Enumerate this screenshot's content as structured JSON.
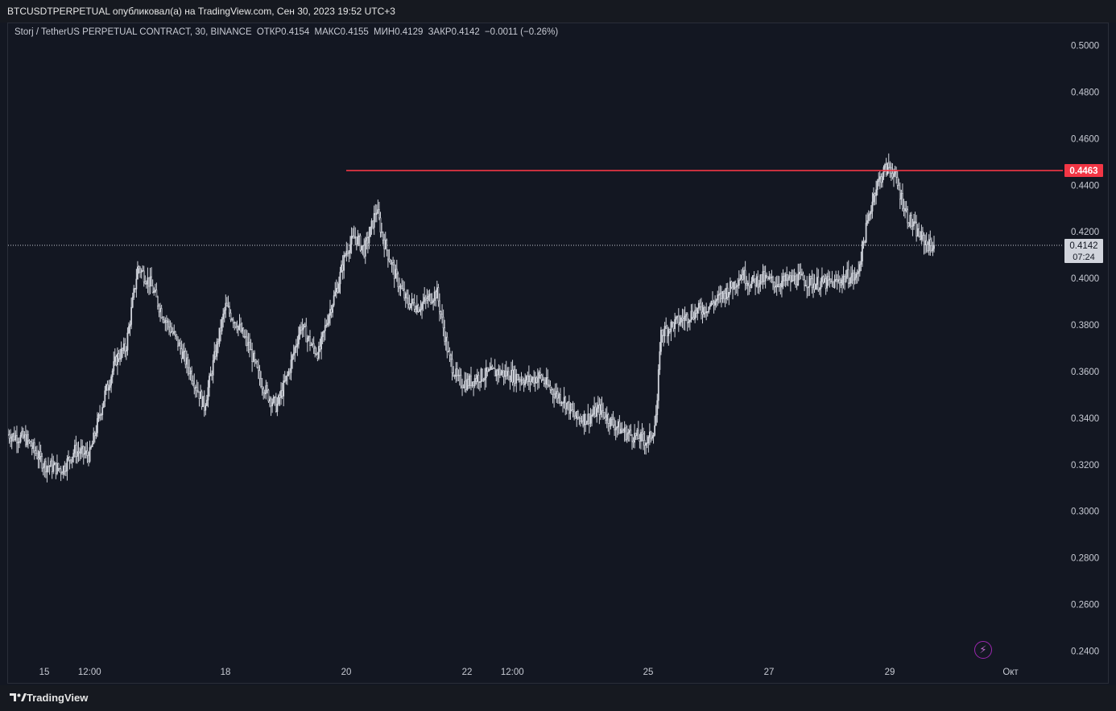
{
  "header": {
    "publisher": "BTCUSDTPERPETUAL опубликовал(а) на TradingView.com, Сен 30, 2023 19:52 UTC+3"
  },
  "legend": {
    "symbol": "Storj / TetherUS PERPETUAL CONTRACT, 30, BINANCE",
    "open": "ОТКР0.4154",
    "high": "МАКС0.4155",
    "low": "МИН0.4129",
    "close": "ЗАКР0.4142",
    "change": "−0.0011 (−0.26%)"
  },
  "footer": {
    "brand": "TradingView"
  },
  "icons": {
    "alert": "lightning-icon",
    "logo": "tradingview-logo-icon"
  },
  "colors": {
    "background": "#131722",
    "candle": "#d1d4dc",
    "level": "#f23645",
    "current_price_tag": "#d1d4dc"
  },
  "chart_data": {
    "type": "candlestick",
    "interval": "30",
    "ylim": [
      0.235,
      0.505
    ],
    "y_ticks": [
      "0.5000",
      "0.4800",
      "0.4600",
      "0.4400",
      "0.4200",
      "0.4000",
      "0.3800",
      "0.3600",
      "0.3400",
      "0.3200",
      "0.3000",
      "0.2800",
      "0.2600",
      "0.2400"
    ],
    "x_ticks": [
      "15",
      "12:00",
      "18",
      "20",
      "22",
      "12:00",
      "25",
      "27",
      "29",
      "Окт"
    ],
    "x_tick_positions_days": [
      14.0,
      14.75,
      17.0,
      19.0,
      21.0,
      21.75,
      24.0,
      26.0,
      28.0,
      30.0
    ],
    "x_range_days": [
      13.4,
      31.0
    ],
    "horizontal_line": {
      "value": 0.4463,
      "label": "0.4463",
      "from_day": 19.0
    },
    "current_price": {
      "value": 0.4142,
      "label": "0.4142",
      "countdown": "07:24"
    },
    "price_path": [
      [
        13.4,
        0.333
      ],
      [
        13.7,
        0.331
      ],
      [
        14.0,
        0.32
      ],
      [
        14.3,
        0.318
      ],
      [
        14.5,
        0.326
      ],
      [
        14.75,
        0.324
      ],
      [
        15.0,
        0.35
      ],
      [
        15.2,
        0.366
      ],
      [
        15.35,
        0.37
      ],
      [
        15.55,
        0.405
      ],
      [
        15.75,
        0.398
      ],
      [
        15.95,
        0.385
      ],
      [
        16.2,
        0.373
      ],
      [
        16.5,
        0.355
      ],
      [
        16.65,
        0.345
      ],
      [
        16.85,
        0.37
      ],
      [
        17.0,
        0.388
      ],
      [
        17.2,
        0.38
      ],
      [
        17.4,
        0.37
      ],
      [
        17.55,
        0.358
      ],
      [
        17.7,
        0.35
      ],
      [
        17.85,
        0.345
      ],
      [
        18.05,
        0.36
      ],
      [
        18.25,
        0.38
      ],
      [
        18.45,
        0.37
      ],
      [
        18.55,
        0.368
      ],
      [
        18.7,
        0.384
      ],
      [
        18.85,
        0.396
      ],
      [
        19.0,
        0.412
      ],
      [
        19.15,
        0.418
      ],
      [
        19.3,
        0.412
      ],
      [
        19.4,
        0.42
      ],
      [
        19.5,
        0.43
      ],
      [
        19.6,
        0.418
      ],
      [
        19.8,
        0.402
      ],
      [
        20.0,
        0.39
      ],
      [
        20.2,
        0.388
      ],
      [
        20.5,
        0.394
      ],
      [
        20.7,
        0.366
      ],
      [
        20.85,
        0.356
      ],
      [
        21.0,
        0.355
      ],
      [
        21.2,
        0.358
      ],
      [
        21.5,
        0.36
      ],
      [
        21.8,
        0.358
      ],
      [
        22.0,
        0.356
      ],
      [
        22.2,
        0.358
      ],
      [
        22.4,
        0.352
      ],
      [
        22.6,
        0.348
      ],
      [
        22.8,
        0.34
      ],
      [
        23.0,
        0.34
      ],
      [
        23.2,
        0.344
      ],
      [
        23.4,
        0.338
      ],
      [
        23.6,
        0.334
      ],
      [
        23.8,
        0.332
      ],
      [
        24.0,
        0.33
      ],
      [
        24.1,
        0.336
      ],
      [
        24.15,
        0.345
      ],
      [
        24.2,
        0.376
      ],
      [
        24.4,
        0.38
      ],
      [
        24.6,
        0.383
      ],
      [
        24.8,
        0.386
      ],
      [
        25.0,
        0.388
      ],
      [
        25.2,
        0.392
      ],
      [
        25.4,
        0.397
      ],
      [
        25.55,
        0.402
      ],
      [
        25.7,
        0.398
      ],
      [
        25.9,
        0.4
      ],
      [
        26.1,
        0.398
      ],
      [
        26.3,
        0.399
      ],
      [
        26.5,
        0.4
      ],
      [
        26.7,
        0.398
      ],
      [
        26.9,
        0.398
      ],
      [
        27.1,
        0.398
      ],
      [
        27.3,
        0.401
      ],
      [
        27.45,
        0.4
      ],
      [
        27.6,
        0.42
      ],
      [
        27.75,
        0.438
      ],
      [
        27.9,
        0.446
      ],
      [
        28.0,
        0.448
      ],
      [
        28.05,
        0.446
      ],
      [
        28.15,
        0.438
      ],
      [
        28.3,
        0.426
      ],
      [
        28.5,
        0.418
      ],
      [
        28.65,
        0.414
      ],
      [
        28.75,
        0.4142
      ]
    ]
  }
}
